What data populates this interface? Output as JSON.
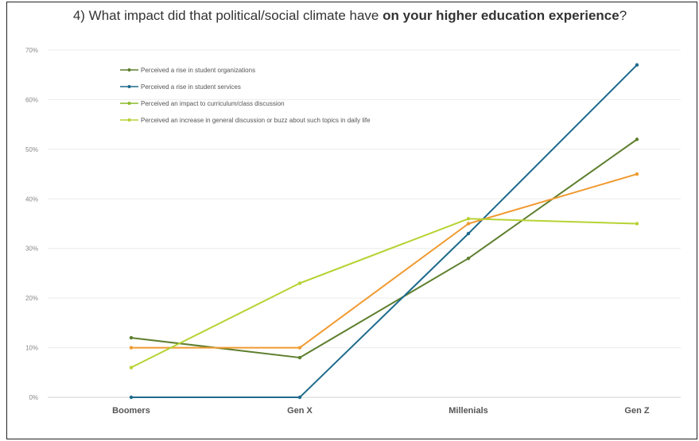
{
  "chart_data": {
    "type": "line",
    "title_plain": "4) What impact did that political/social climate have ",
    "title_bold": "on your higher education experience",
    "title_end": "?",
    "categories": [
      "Boomers",
      "Gen X",
      "Millenials",
      "Gen Z"
    ],
    "y_ticks": [
      "0%",
      "10%",
      "20%",
      "30%",
      "40%",
      "50%",
      "60%",
      "70%"
    ],
    "ylim": [
      0,
      70
    ],
    "grid": true,
    "legend_position": "top-left",
    "series": [
      {
        "name": "Perceived a rise in student organizations",
        "color": "#5e7f2e",
        "values": [
          12,
          8,
          28,
          52
        ]
      },
      {
        "name": "Perceived a rise in student services",
        "color": "#1f6b8c",
        "values": [
          0,
          0,
          33,
          67
        ]
      },
      {
        "name": "Perceived an impact to curriculum/class discussion",
        "color": "#f09a30",
        "values": [
          10,
          10,
          35,
          45
        ]
      },
      {
        "name": "Perceived an increase in general discussion or buzz about such topics in daily life",
        "color": "#b6d334",
        "values": [
          6,
          23,
          36,
          35
        ]
      }
    ],
    "legend_marker_colors": [
      "#5e7f2e",
      "#1f6b8c",
      "#8cba2a",
      "#b6d334"
    ]
  }
}
